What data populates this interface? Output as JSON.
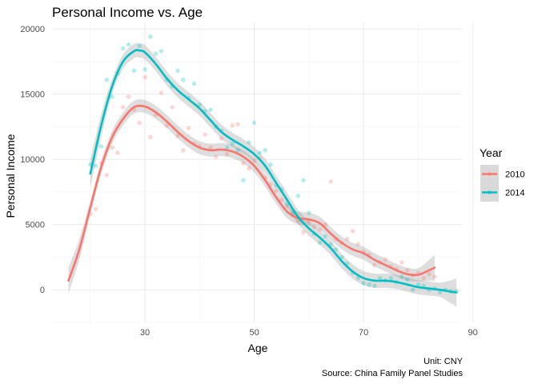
{
  "chart_data": {
    "type": "scatter",
    "title": "Personal Income vs. Age",
    "xlabel": "Age",
    "ylabel": "Personal Income",
    "xlim": [
      13,
      88
    ],
    "ylim": [
      -2500,
      20500
    ],
    "x_ticks": [
      30,
      50,
      70,
      90
    ],
    "y_ticks": [
      0,
      5000,
      10000,
      15000,
      20000
    ],
    "x_tick_labels": [
      "30",
      "50",
      "70",
      "90"
    ],
    "y_tick_labels": [
      "0",
      "5000",
      "10000",
      "15000",
      "20000"
    ],
    "grid": true,
    "legend": {
      "title": "Year",
      "position": "right"
    },
    "caption": [
      "Unit: CNY",
      "Source: China Family Panel Studies"
    ],
    "colors": {
      "2010": "#F8766D",
      "2014": "#00BFC4",
      "band": "#999999"
    },
    "series": [
      {
        "name": "2010",
        "points": [
          [
            20,
            5800
          ],
          [
            21,
            6200
          ],
          [
            22,
            9700
          ],
          [
            23,
            8800
          ],
          [
            24,
            10900
          ],
          [
            25,
            10500
          ],
          [
            26,
            14000
          ],
          [
            27,
            14800
          ],
          [
            28,
            13800
          ],
          [
            29,
            12800
          ],
          [
            30,
            16300
          ],
          [
            31,
            11700
          ],
          [
            32,
            13400
          ],
          [
            33,
            15100
          ],
          [
            34,
            12600
          ],
          [
            35,
            14000
          ],
          [
            36,
            11800
          ],
          [
            37,
            10700
          ],
          [
            38,
            12400
          ],
          [
            39,
            11200
          ],
          [
            40,
            11000
          ],
          [
            41,
            11900
          ],
          [
            42,
            10900
          ],
          [
            43,
            10200
          ],
          [
            44,
            11600
          ],
          [
            45,
            10400
          ],
          [
            46,
            12600
          ],
          [
            47,
            12700
          ],
          [
            48,
            9700
          ],
          [
            49,
            9300
          ],
          [
            50,
            9900
          ],
          [
            51,
            10100
          ],
          [
            52,
            8600
          ],
          [
            53,
            8100
          ],
          [
            54,
            7600
          ],
          [
            55,
            6900
          ],
          [
            56,
            6400
          ],
          [
            57,
            5700
          ],
          [
            58,
            5300
          ],
          [
            59,
            4400
          ],
          [
            60,
            5200
          ],
          [
            61,
            4800
          ],
          [
            62,
            4600
          ],
          [
            63,
            5000
          ],
          [
            64,
            8300
          ],
          [
            65,
            3900
          ],
          [
            66,
            3600
          ],
          [
            67,
            3900
          ],
          [
            68,
            4500
          ],
          [
            69,
            3500
          ],
          [
            70,
            2900
          ],
          [
            71,
            2700
          ],
          [
            72,
            1900
          ],
          [
            73,
            2100
          ],
          [
            74,
            2300
          ],
          [
            75,
            1800
          ],
          [
            76,
            1600
          ],
          [
            77,
            2100
          ],
          [
            78,
            1500
          ],
          [
            79,
            1100
          ],
          [
            80,
            1300
          ],
          [
            81,
            900
          ],
          [
            82,
            1200
          ],
          [
            83,
            1000
          ]
        ],
        "smooth": [
          [
            16,
            700
          ],
          [
            18,
            3100
          ],
          [
            20,
            6300
          ],
          [
            22,
            9400
          ],
          [
            24,
            11700
          ],
          [
            26,
            13100
          ],
          [
            28,
            14000
          ],
          [
            30,
            14050
          ],
          [
            32,
            13600
          ],
          [
            34,
            12900
          ],
          [
            36,
            12100
          ],
          [
            38,
            11400
          ],
          [
            40,
            10900
          ],
          [
            42,
            10700
          ],
          [
            44,
            10750
          ],
          [
            46,
            10600
          ],
          [
            48,
            10200
          ],
          [
            50,
            9500
          ],
          [
            52,
            8400
          ],
          [
            54,
            7100
          ],
          [
            56,
            6000
          ],
          [
            58,
            5500
          ],
          [
            60,
            5400
          ],
          [
            62,
            5100
          ],
          [
            64,
            4300
          ],
          [
            66,
            3600
          ],
          [
            68,
            3100
          ],
          [
            70,
            2800
          ],
          [
            72,
            2300
          ],
          [
            74,
            1900
          ],
          [
            76,
            1500
          ],
          [
            78,
            1200
          ],
          [
            80,
            1150
          ],
          [
            82,
            1500
          ],
          [
            83,
            1700
          ]
        ],
        "band_half_width": 500
      },
      {
        "name": "2014",
        "points": [
          [
            20,
            9600
          ],
          [
            21,
            9500
          ],
          [
            22,
            11000
          ],
          [
            23,
            16100
          ],
          [
            24,
            14800
          ],
          [
            25,
            16600
          ],
          [
            26,
            18500
          ],
          [
            27,
            18800
          ],
          [
            28,
            16800
          ],
          [
            29,
            18700
          ],
          [
            30,
            16900
          ],
          [
            31,
            19400
          ],
          [
            32,
            18100
          ],
          [
            33,
            18300
          ],
          [
            34,
            16100
          ],
          [
            35,
            15600
          ],
          [
            36,
            16800
          ],
          [
            37,
            16100
          ],
          [
            38,
            14700
          ],
          [
            39,
            15800
          ],
          [
            40,
            14200
          ],
          [
            41,
            13700
          ],
          [
            42,
            13800
          ],
          [
            43,
            12500
          ],
          [
            44,
            12200
          ],
          [
            45,
            10900
          ],
          [
            46,
            11200
          ],
          [
            47,
            10700
          ],
          [
            48,
            8400
          ],
          [
            49,
            11300
          ],
          [
            50,
            12800
          ],
          [
            51,
            10500
          ],
          [
            52,
            10700
          ],
          [
            53,
            9600
          ],
          [
            54,
            8000
          ],
          [
            55,
            7700
          ],
          [
            56,
            6600
          ],
          [
            57,
            5900
          ],
          [
            58,
            7200
          ],
          [
            59,
            8400
          ],
          [
            60,
            5900
          ],
          [
            61,
            4300
          ],
          [
            62,
            3600
          ],
          [
            63,
            4100
          ],
          [
            64,
            3500
          ],
          [
            65,
            3100
          ],
          [
            66,
            2500
          ],
          [
            67,
            2000
          ],
          [
            68,
            1300
          ],
          [
            69,
            900
          ],
          [
            70,
            500
          ],
          [
            71,
            400
          ],
          [
            72,
            300
          ],
          [
            73,
            900
          ],
          [
            74,
            700
          ],
          [
            75,
            900
          ],
          [
            76,
            600
          ],
          [
            77,
            1000
          ],
          [
            78,
            800
          ],
          [
            79,
            0
          ],
          [
            80,
            400
          ],
          [
            81,
            300
          ],
          [
            82,
            0
          ],
          [
            83,
            100
          ],
          [
            84,
            -200
          ],
          [
            85,
            0
          ],
          [
            86,
            -100
          ],
          [
            87,
            -100
          ]
        ],
        "smooth": [
          [
            20,
            8900
          ],
          [
            22,
            12600
          ],
          [
            24,
            15600
          ],
          [
            26,
            17500
          ],
          [
            28,
            18300
          ],
          [
            29,
            18350
          ],
          [
            30,
            18200
          ],
          [
            32,
            17300
          ],
          [
            34,
            16200
          ],
          [
            36,
            15300
          ],
          [
            38,
            14600
          ],
          [
            40,
            13900
          ],
          [
            42,
            13000
          ],
          [
            44,
            12100
          ],
          [
            46,
            11500
          ],
          [
            48,
            11000
          ],
          [
            50,
            10400
          ],
          [
            52,
            9500
          ],
          [
            54,
            8200
          ],
          [
            56,
            6900
          ],
          [
            58,
            5600
          ],
          [
            60,
            4700
          ],
          [
            62,
            4000
          ],
          [
            64,
            3200
          ],
          [
            66,
            2200
          ],
          [
            68,
            1400
          ],
          [
            70,
            900
          ],
          [
            72,
            700
          ],
          [
            74,
            700
          ],
          [
            76,
            600
          ],
          [
            78,
            400
          ],
          [
            80,
            200
          ],
          [
            82,
            100
          ],
          [
            84,
            0
          ],
          [
            86,
            -150
          ],
          [
            87,
            -200
          ]
        ],
        "band_half_width": 550
      }
    ]
  }
}
